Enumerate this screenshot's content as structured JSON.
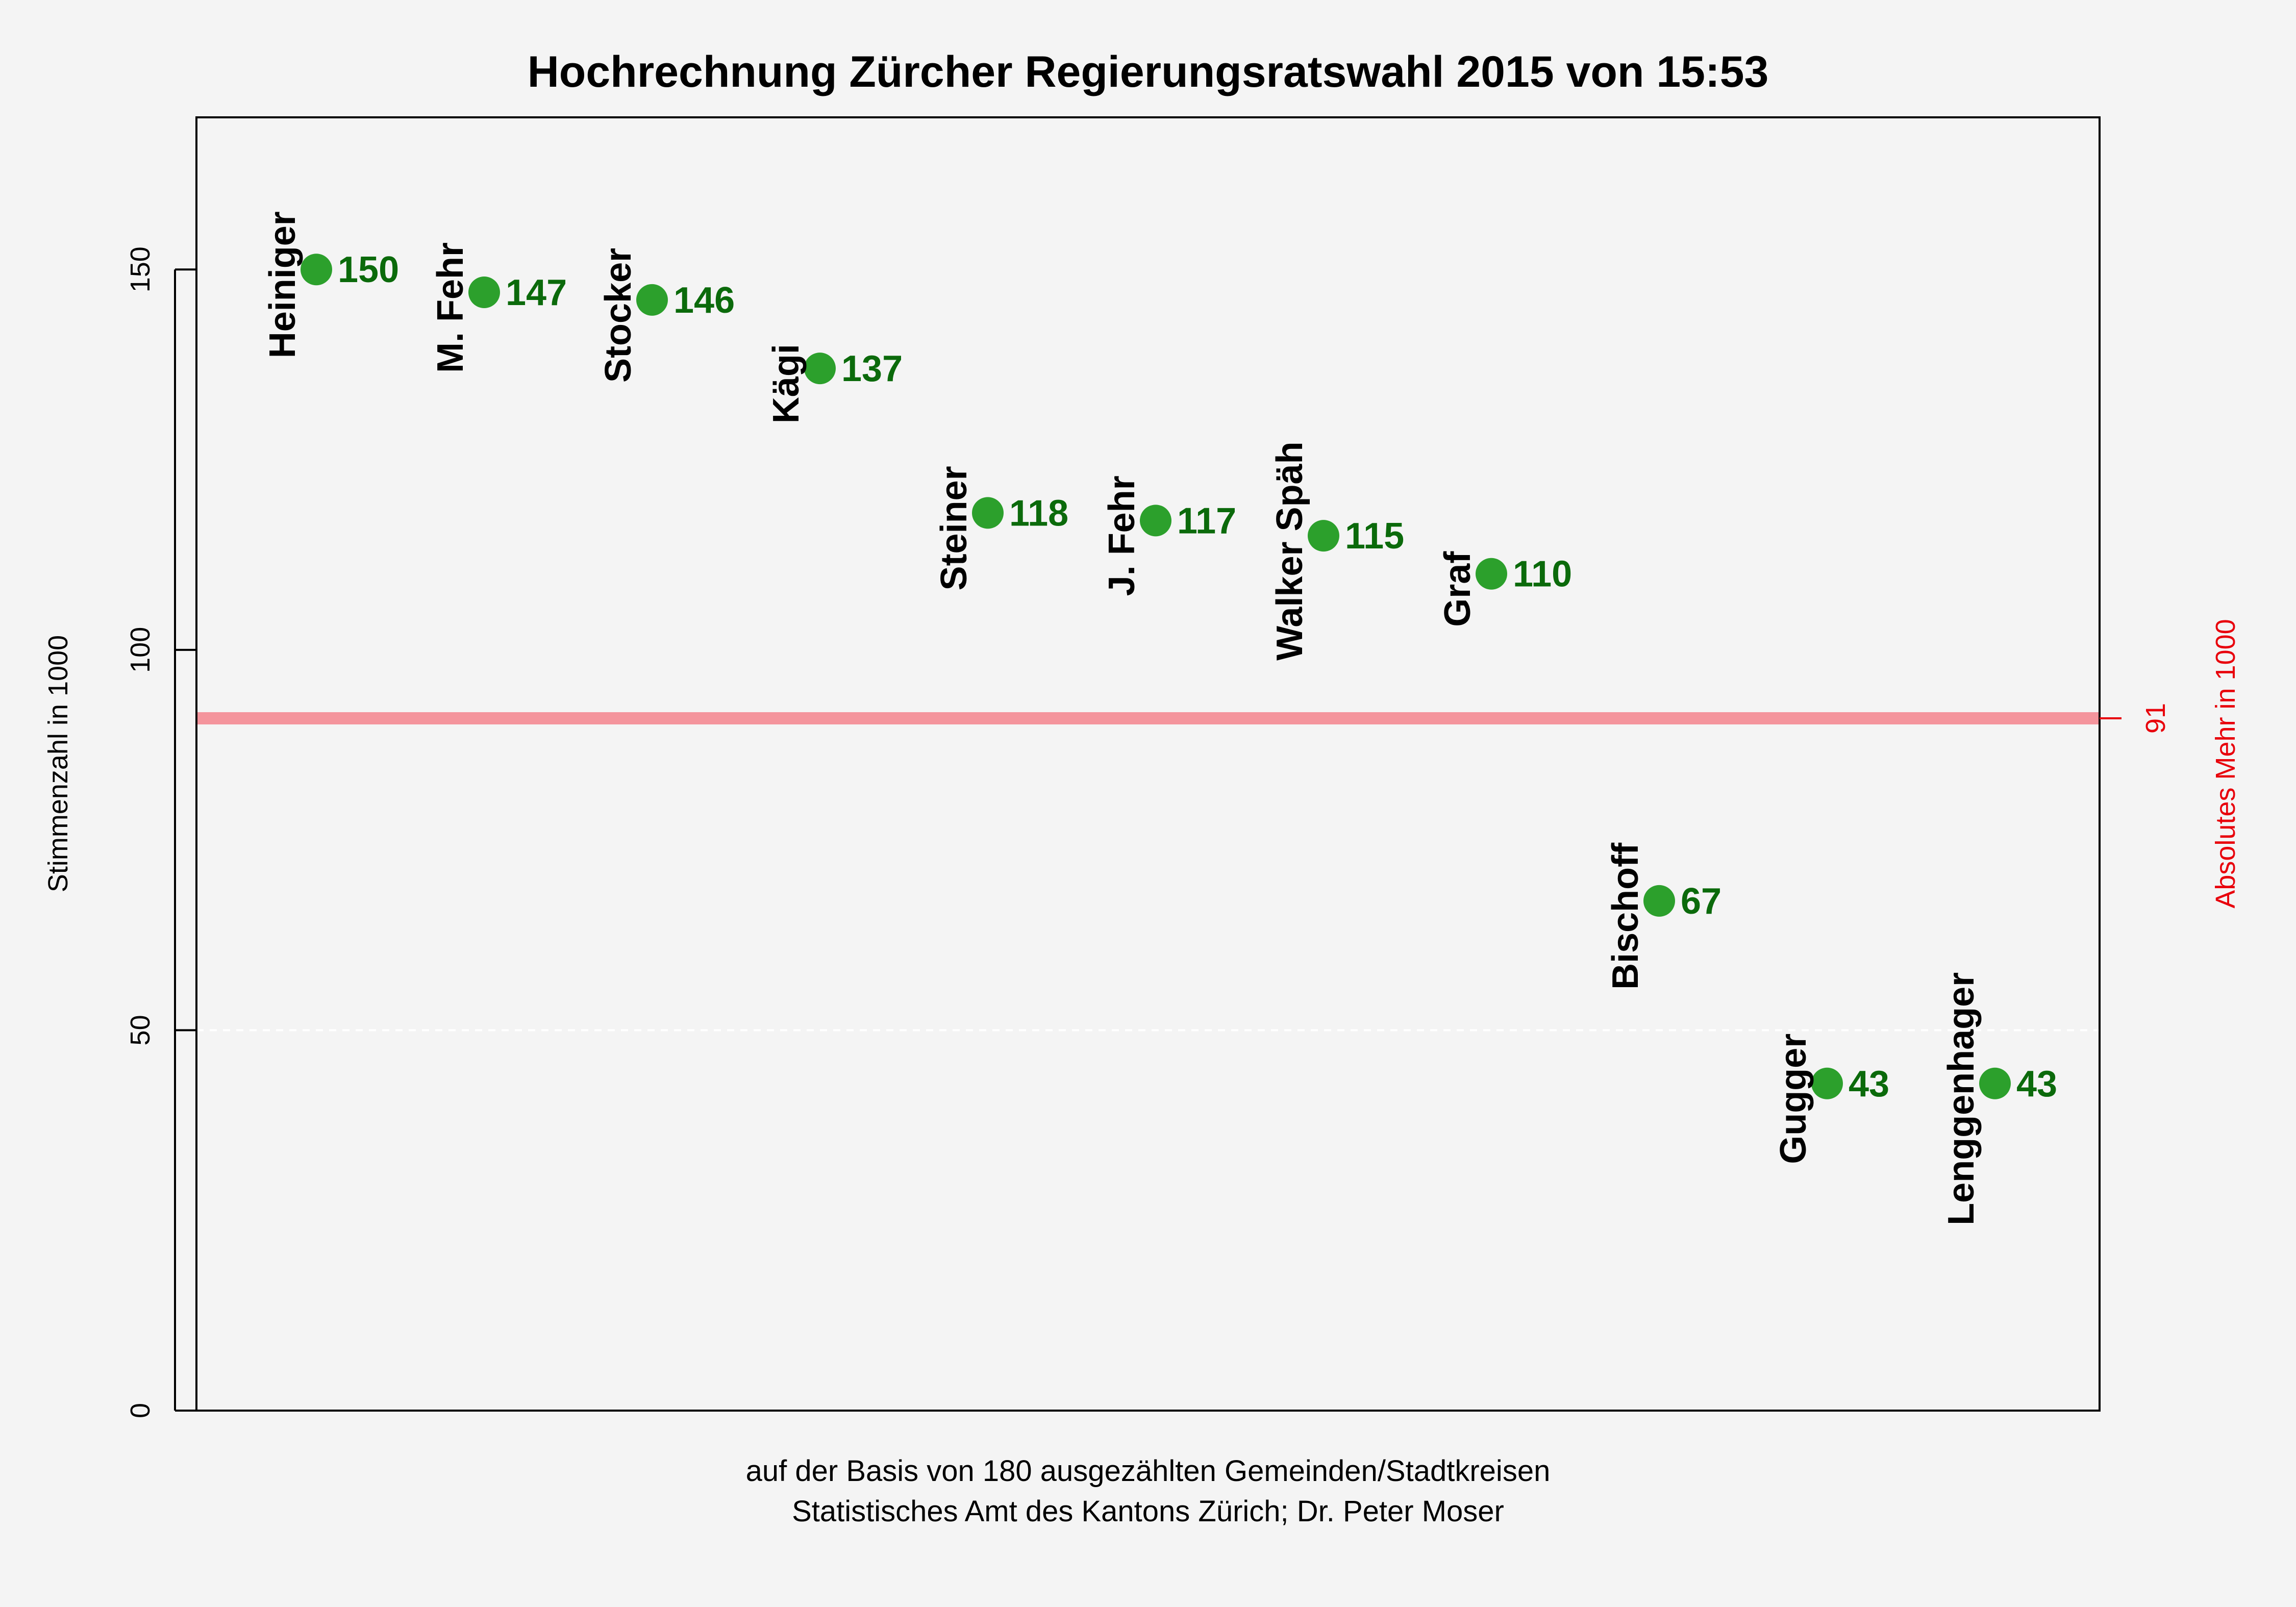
{
  "chart_data": {
    "type": "scatter",
    "title": "Hochrechnung Zürcher Regierungsratswahl 2015 von 15:53",
    "ylabel": "Stimmenzahl in 1000",
    "ylim": [
      0,
      170
    ],
    "yticks": [
      0,
      50,
      100,
      150
    ],
    "grid": "horizontal dashed at 50",
    "candidates": [
      {
        "name": "Heiniger",
        "value": 150
      },
      {
        "name": "M. Fehr",
        "value": 147
      },
      {
        "name": "Stocker",
        "value": 146
      },
      {
        "name": "Kägi",
        "value": 137
      },
      {
        "name": "Steiner",
        "value": 118
      },
      {
        "name": "J. Fehr",
        "value": 117
      },
      {
        "name": "Walker Späh",
        "value": 115
      },
      {
        "name": "Graf",
        "value": 110
      },
      {
        "name": "Bischoff",
        "value": 67
      },
      {
        "name": "Gugger",
        "value": 43
      },
      {
        "name": "Lenggenhager",
        "value": 43
      }
    ],
    "threshold": {
      "value": 91,
      "tick_label": "91",
      "label": "Absolutes Mehr in 1000",
      "color": "#f4949c"
    },
    "point_color": "#2ca02c",
    "value_label_color": "#0b6a0b",
    "notes": [
      "auf der Basis von 180 ausgezählten Gemeinden/Stadtkreisen",
      "Statistisches Amt des Kantons Zürich; Dr. Peter Moser"
    ]
  }
}
